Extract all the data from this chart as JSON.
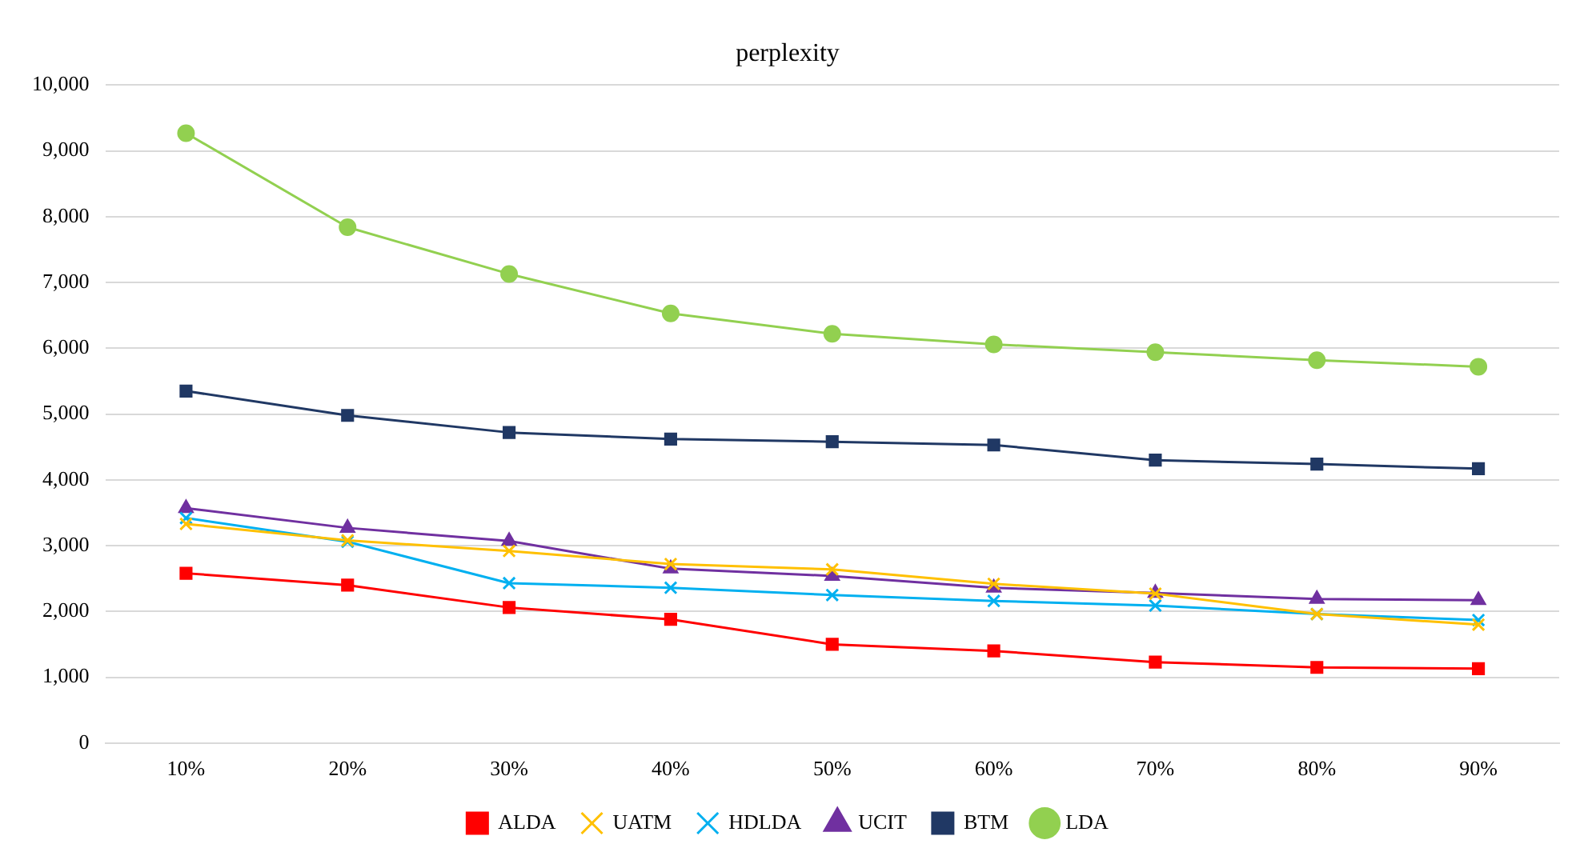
{
  "chart_data": {
    "type": "line",
    "title": "perplexity",
    "categories": [
      "10%",
      "20%",
      "30%",
      "40%",
      "50%",
      "60%",
      "70%",
      "80%",
      "90%"
    ],
    "series": [
      {
        "name": "ALDA",
        "color": "#ff0000",
        "marker": "square",
        "values": [
          2580,
          2400,
          2060,
          1880,
          1500,
          1400,
          1230,
          1150,
          1130
        ]
      },
      {
        "name": "UATM",
        "color": "#ffc000",
        "marker": "cross",
        "values": [
          3330,
          3080,
          2920,
          2720,
          2640,
          2420,
          2270,
          1960,
          1800
        ]
      },
      {
        "name": "HDLDA",
        "color": "#00b0f0",
        "marker": "cross",
        "values": [
          3420,
          3060,
          2430,
          2360,
          2250,
          2160,
          2090,
          1960,
          1870
        ]
      },
      {
        "name": "UCIT",
        "color": "#7030a0",
        "marker": "triangle",
        "values": [
          3570,
          3270,
          3070,
          2650,
          2540,
          2360,
          2280,
          2190,
          2170
        ]
      },
      {
        "name": "BTM",
        "color": "#203864",
        "marker": "square",
        "values": [
          5350,
          4980,
          4720,
          4620,
          4580,
          4530,
          4300,
          4240,
          4170
        ]
      },
      {
        "name": "LDA",
        "color": "#92d050",
        "marker": "circle",
        "values": [
          9270,
          7840,
          7130,
          6530,
          6220,
          6060,
          5940,
          5820,
          5720
        ]
      }
    ],
    "ylim": [
      0,
      10000
    ],
    "yticks": [
      0,
      {
        "value": 1000,
        "label": "1,000"
      },
      {
        "value": 2000,
        "label": "2,000"
      },
      {
        "value": 3000,
        "label": "3,000"
      },
      {
        "value": 4000,
        "label": "4,000"
      },
      {
        "value": 5000,
        "label": "5,000"
      },
      {
        "value": 6000,
        "label": "6,000"
      },
      {
        "value": 7000,
        "label": "7,000"
      },
      {
        "value": 8000,
        "label": "8,000"
      },
      {
        "value": 9000,
        "label": "9,000"
      },
      {
        "value": 10000,
        "label": "10,000"
      }
    ],
    "grid": "y",
    "legend": "bottom"
  }
}
